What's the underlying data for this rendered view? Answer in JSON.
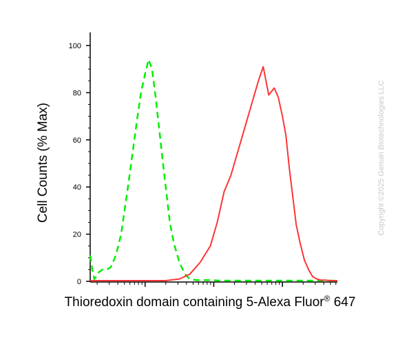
{
  "chart_data": {
    "type": "line",
    "title": "",
    "ylabel": "Cell Counts (% Max)",
    "xlabel": {
      "main": "Thioredoxin domain containing 5-Alexa Fluor",
      "sup": "®",
      "suffix": " 647"
    },
    "ylim": [
      0,
      100
    ],
    "xscale": "log",
    "xlim": [
      0.2,
      3.8
    ],
    "yticks": [
      "0",
      "20",
      "40",
      "60",
      "80",
      "100"
    ],
    "ytick_values": [
      0,
      20,
      40,
      60,
      80,
      100
    ],
    "grid": false,
    "legend": "none",
    "watermark": "Copyright ©2025 Genuin Biotechnologies LLC",
    "series": [
      {
        "style": "dashed",
        "color": "#00ee00",
        "x": [
          0.2,
          0.23,
          0.26,
          0.29,
          0.33,
          0.38,
          0.44,
          0.5,
          0.56,
          0.6,
          0.65,
          0.7,
          0.76,
          0.82,
          0.88,
          0.94,
          1.0,
          1.05,
          1.1,
          1.15,
          1.2,
          1.26,
          1.32,
          1.36,
          1.42,
          1.5,
          1.58,
          1.65,
          1.75,
          1.85,
          1.95,
          2.1,
          2.3,
          2.6,
          3.0,
          3.4,
          3.8
        ],
        "y": [
          11,
          5,
          1,
          2,
          4,
          5,
          5,
          6,
          10,
          14,
          20,
          30,
          42,
          55,
          68,
          80,
          88,
          94,
          90,
          79,
          66,
          50,
          35,
          25,
          16,
          8,
          3,
          1,
          0.5,
          0.5,
          0.5,
          0.3,
          0.3,
          0.3,
          0.3,
          0.3,
          0.3
        ]
      },
      {
        "style": "solid",
        "color": "#ff3333",
        "x": [
          0.2,
          1.0,
          1.3,
          1.5,
          1.65,
          1.8,
          1.95,
          2.05,
          2.15,
          2.25,
          2.35,
          2.45,
          2.55,
          2.65,
          2.72,
          2.8,
          2.88,
          2.94,
          3.0,
          3.05,
          3.1,
          3.15,
          3.2,
          3.26,
          3.32,
          3.38,
          3.44,
          3.5,
          3.56,
          3.62,
          3.7,
          3.8
        ],
        "y": [
          0.3,
          0.3,
          0.3,
          1,
          3,
          8,
          15,
          25,
          38,
          45,
          55,
          65,
          75,
          85,
          91,
          79,
          82,
          78,
          70,
          62,
          48,
          36,
          24,
          16,
          9,
          5,
          2,
          1,
          0.5,
          0.5,
          0.3,
          0.3
        ]
      }
    ]
  }
}
